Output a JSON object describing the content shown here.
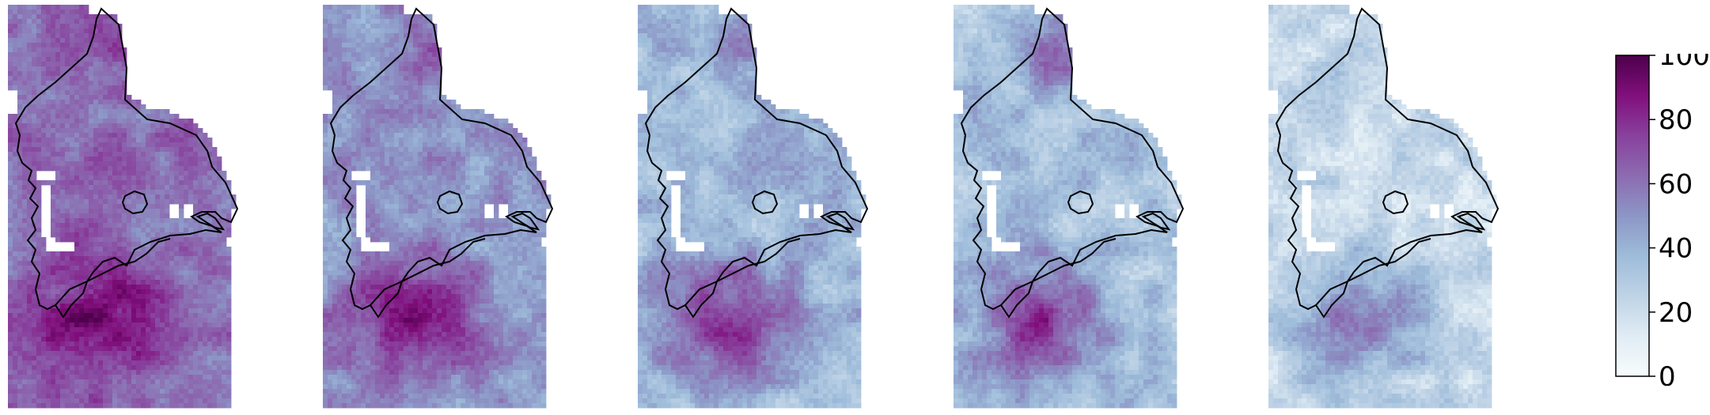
{
  "colorbar": {
    "min": 0,
    "max": 100,
    "ticks": [
      "0",
      "20",
      "40",
      "60",
      "80",
      "100"
    ],
    "colors": [
      "#f7fcfd",
      "#e0ecf4",
      "#bfd3e6",
      "#9ebcda",
      "#8c96c6",
      "#8c6bb1",
      "#88419d",
      "#810f7c",
      "#4d004b"
    ]
  },
  "panels": [
    {
      "id": "map-1",
      "mean_level": 62,
      "hotspot_level": 88,
      "north_level": 70
    },
    {
      "id": "map-2",
      "mean_level": 50,
      "hotspot_level": 80,
      "north_level": 68
    },
    {
      "id": "map-3",
      "mean_level": 38,
      "hotspot_level": 75,
      "north_level": 55
    },
    {
      "id": "map-4",
      "mean_level": 34,
      "hotspot_level": 72,
      "north_level": 62
    },
    {
      "id": "map-5",
      "mean_level": 22,
      "hotspot_level": 55,
      "north_level": 30
    }
  ]
}
